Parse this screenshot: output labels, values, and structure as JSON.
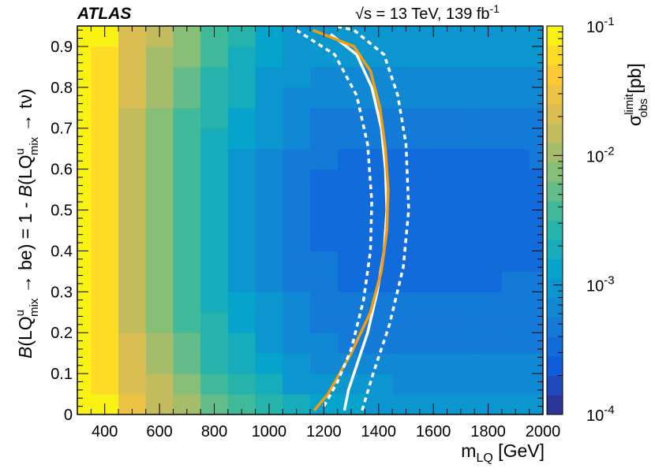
{
  "header": {
    "experiment": "ATLAS",
    "energy_label": "√s = 13 TeV, 139 fb",
    "lumi_exp": "-1"
  },
  "axes": {
    "x_main": "m",
    "x_sub": "LQ",
    "x_unit": " [GeV]",
    "y_label_pieces": [
      "B",
      "(LQ",
      "u",
      "mix",
      " → be) = 1 - ",
      "B",
      "(LQ",
      "u",
      "mix",
      " → tν)"
    ],
    "z_label_main": "σ",
    "z_label_sup": "limit",
    "z_label_sub": "obs",
    "z_label_unit": " [pb]"
  },
  "chart_data": {
    "type": "heatmap",
    "title": "",
    "xlabel": "m_LQ [GeV]",
    "ylabel": "B(LQ^u_mix → be) = 1 - B(LQ^u_mix → tν)",
    "zlabel": "σ^limit_obs [pb]",
    "xlim": [
      300,
      2000
    ],
    "ylim": [
      0,
      0.95
    ],
    "zlim": [
      0.0001,
      0.1
    ],
    "zscale": "log",
    "x_ticks": [
      "400",
      "600",
      "800",
      "1000",
      "1200",
      "1400",
      "1600",
      "1800",
      "2000"
    ],
    "y_ticks": [
      "0",
      "0.1",
      "0.2",
      "0.3",
      "0.4",
      "0.5",
      "0.6",
      "0.7",
      "0.8",
      "0.9"
    ],
    "z_ticks": [
      {
        "base": "10",
        "exp": "-1"
      },
      {
        "base": "10",
        "exp": "-2"
      },
      {
        "base": "10",
        "exp": "-3"
      },
      {
        "base": "10",
        "exp": "-4"
      }
    ],
    "x_bin_edges": [
      300,
      350,
      450,
      550,
      650,
      750,
      850,
      950,
      1050,
      1150,
      1250,
      1350,
      1450,
      1550,
      1650,
      1750,
      1850,
      1950,
      2000
    ],
    "y_bin_edges": [
      0,
      0.05,
      0.1,
      0.15,
      0.2,
      0.25,
      0.3,
      0.35,
      0.4,
      0.45,
      0.5,
      0.55,
      0.6,
      0.65,
      0.7,
      0.75,
      0.8,
      0.85,
      0.9,
      0.95
    ],
    "z_log10_values": [
      [
        -1.1,
        -1.15,
        -1.55,
        -1.8,
        -2.05,
        -2.3,
        -2.5,
        -2.65,
        -2.75,
        -2.85,
        -2.9,
        -2.95,
        -3.0,
        -3.0,
        -3.0,
        -3.0,
        -3.0,
        -3.0
      ],
      [
        -1.1,
        -1.2,
        -1.65,
        -1.9,
        -2.15,
        -2.45,
        -2.65,
        -2.8,
        -2.95,
        -3.05,
        -3.1,
        -3.1,
        -3.15,
        -3.15,
        -3.15,
        -3.15,
        -3.15,
        -3.15
      ],
      [
        -1.1,
        -1.2,
        -1.7,
        -2.0,
        -2.25,
        -2.55,
        -2.75,
        -2.9,
        -3.05,
        -3.15,
        -3.2,
        -3.2,
        -3.25,
        -3.25,
        -3.25,
        -3.25,
        -3.25,
        -3.25
      ],
      [
        -1.1,
        -1.25,
        -1.75,
        -2.05,
        -2.3,
        -2.6,
        -2.8,
        -3.0,
        -3.15,
        -3.25,
        -3.3,
        -3.3,
        -3.3,
        -3.3,
        -3.3,
        -3.3,
        -3.3,
        -3.3
      ],
      [
        -1.1,
        -1.25,
        -1.8,
        -2.1,
        -2.35,
        -2.65,
        -2.85,
        -3.05,
        -3.2,
        -3.3,
        -3.35,
        -3.35,
        -3.35,
        -3.35,
        -3.35,
        -3.35,
        -3.35,
        -3.35
      ],
      [
        -1.1,
        -1.3,
        -1.8,
        -2.1,
        -2.4,
        -2.7,
        -2.9,
        -3.1,
        -3.25,
        -3.35,
        -3.4,
        -3.4,
        -3.4,
        -3.4,
        -3.4,
        -3.4,
        -3.4,
        -3.35
      ],
      [
        -1.1,
        -1.3,
        -1.85,
        -2.15,
        -2.4,
        -2.7,
        -2.95,
        -3.15,
        -3.3,
        -3.4,
        -3.45,
        -3.45,
        -3.45,
        -3.45,
        -3.45,
        -3.45,
        -3.4,
        -3.4
      ],
      [
        -1.1,
        -1.3,
        -1.85,
        -2.15,
        -2.45,
        -2.75,
        -3.0,
        -3.15,
        -3.3,
        -3.4,
        -3.45,
        -3.45,
        -3.45,
        -3.45,
        -3.45,
        -3.45,
        -3.45,
        -3.45
      ],
      [
        -1.1,
        -1.3,
        -1.85,
        -2.15,
        -2.45,
        -2.75,
        -3.0,
        -3.2,
        -3.35,
        -3.45,
        -3.5,
        -3.5,
        -3.5,
        -3.5,
        -3.5,
        -3.5,
        -3.45,
        -3.45
      ],
      [
        -1.1,
        -1.3,
        -1.85,
        -2.15,
        -2.45,
        -2.75,
        -3.0,
        -3.2,
        -3.35,
        -3.45,
        -3.5,
        -3.5,
        -3.5,
        -3.5,
        -3.5,
        -3.5,
        -3.5,
        -3.45
      ],
      [
        -1.1,
        -1.3,
        -1.85,
        -2.15,
        -2.45,
        -2.75,
        -3.0,
        -3.2,
        -3.35,
        -3.45,
        -3.5,
        -3.5,
        -3.5,
        -3.5,
        -3.5,
        -3.5,
        -3.5,
        -3.45
      ],
      [
        -1.1,
        -1.3,
        -1.85,
        -2.15,
        -2.45,
        -2.75,
        -3.0,
        -3.15,
        -3.35,
        -3.45,
        -3.5,
        -3.5,
        -3.5,
        -3.5,
        -3.5,
        -3.5,
        -3.45,
        -3.45
      ],
      [
        -1.1,
        -1.3,
        -1.85,
        -2.15,
        -2.4,
        -2.7,
        -2.95,
        -3.15,
        -3.3,
        -3.4,
        -3.45,
        -3.45,
        -3.45,
        -3.45,
        -3.45,
        -3.45,
        -3.45,
        -3.4
      ],
      [
        -1.1,
        -1.3,
        -1.8,
        -2.1,
        -2.4,
        -2.7,
        -2.9,
        -3.1,
        -3.25,
        -3.35,
        -3.4,
        -3.4,
        -3.4,
        -3.4,
        -3.4,
        -3.4,
        -3.4,
        -3.4
      ],
      [
        -1.1,
        -1.25,
        -1.8,
        -2.1,
        -2.35,
        -2.65,
        -2.85,
        -3.05,
        -3.2,
        -3.3,
        -3.35,
        -3.35,
        -3.35,
        -3.35,
        -3.35,
        -3.35,
        -3.35,
        -3.35
      ],
      [
        -1.05,
        -1.25,
        -1.75,
        -2.05,
        -2.3,
        -2.6,
        -2.8,
        -3.0,
        -3.15,
        -3.2,
        -3.25,
        -3.25,
        -3.25,
        -3.25,
        -3.25,
        -3.25,
        -3.25,
        -3.25
      ],
      [
        -1.05,
        -1.2,
        -1.7,
        -2.0,
        -2.25,
        -2.55,
        -2.75,
        -2.95,
        -3.05,
        -3.15,
        -3.15,
        -3.2,
        -3.2,
        -3.2,
        -3.2,
        -3.2,
        -3.2,
        -3.2
      ],
      [
        -1.05,
        -1.2,
        -1.65,
        -1.95,
        -2.2,
        -2.5,
        -2.7,
        -2.9,
        -3.0,
        -3.05,
        -3.1,
        -3.1,
        -3.1,
        -3.1,
        -3.1,
        -3.1,
        -3.1,
        -3.1
      ],
      [
        -1.05,
        -1.15,
        -1.6,
        -1.9,
        -2.15,
        -2.45,
        -2.65,
        -2.85,
        -2.95,
        -3.0,
        -3.05,
        -3.05,
        -3.05,
        -3.05,
        -3.05,
        -3.05,
        -3.05,
        -3.05
      ]
    ],
    "contours": [
      {
        "role": "observed",
        "color": "#ffffff",
        "style": "solid",
        "points": [
          [
            1275,
            0.01
          ],
          [
            1290,
            0.06
          ],
          [
            1320,
            0.12
          ],
          [
            1360,
            0.2
          ],
          [
            1395,
            0.3
          ],
          [
            1420,
            0.4
          ],
          [
            1430,
            0.5
          ],
          [
            1425,
            0.6
          ],
          [
            1410,
            0.7
          ],
          [
            1375,
            0.8
          ],
          [
            1320,
            0.88
          ],
          [
            1225,
            0.93
          ]
        ]
      },
      {
        "role": "expected",
        "color": "#f39c12",
        "style": "solid",
        "points": [
          [
            1165,
            0.01
          ],
          [
            1215,
            0.05
          ],
          [
            1300,
            0.15
          ],
          [
            1370,
            0.25
          ],
          [
            1410,
            0.35
          ],
          [
            1430,
            0.45
          ],
          [
            1435,
            0.55
          ],
          [
            1425,
            0.65
          ],
          [
            1405,
            0.75
          ],
          [
            1370,
            0.84
          ],
          [
            1310,
            0.9
          ],
          [
            1160,
            0.94
          ]
        ]
      },
      {
        "role": "expected_minus_1sigma",
        "color": "#ffffff",
        "style": "dotted",
        "points": [
          [
            1200,
            0.02
          ],
          [
            1250,
            0.08
          ],
          [
            1300,
            0.16
          ],
          [
            1345,
            0.28
          ],
          [
            1370,
            0.4
          ],
          [
            1375,
            0.52
          ],
          [
            1360,
            0.66
          ],
          [
            1320,
            0.78
          ],
          [
            1240,
            0.88
          ],
          [
            1100,
            0.94
          ]
        ]
      },
      {
        "role": "expected_plus_1sigma",
        "color": "#ffffff",
        "style": "dotted",
        "points": [
          [
            1340,
            0.01
          ],
          [
            1380,
            0.1
          ],
          [
            1440,
            0.22
          ],
          [
            1490,
            0.36
          ],
          [
            1510,
            0.5
          ],
          [
            1500,
            0.66
          ],
          [
            1470,
            0.78
          ],
          [
            1420,
            0.88
          ],
          [
            1310,
            0.94
          ],
          [
            1240,
            0.95
          ]
        ]
      }
    ],
    "palette": [
      "#352a87",
      "#0f5cdd",
      "#1481d6",
      "#06a4ca",
      "#2eb7a4",
      "#87bf77",
      "#d1bb59",
      "#fec832",
      "#f9fb0e"
    ]
  }
}
